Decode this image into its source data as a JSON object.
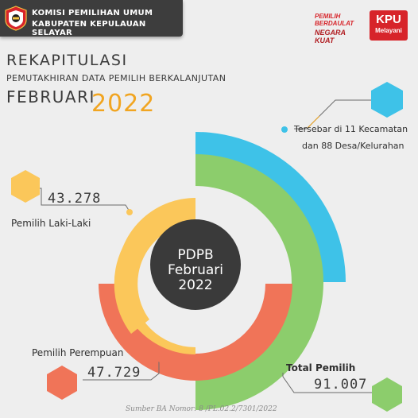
{
  "header": {
    "org_line1": "KOMISI PEMILIHAN UMUM",
    "org_line2": "KABUPATEN KEPULAUAN SELAYAR"
  },
  "badges": {
    "pilihan_line1": "PEMILIH",
    "pilihan_line2": "BERDAULAT",
    "pilihan_line3": "NEGARA",
    "pilihan_line4": "KUAT",
    "kpu_line1": "KPU",
    "kpu_line2": "Melayani"
  },
  "title": {
    "line1": "REKAPITULASI",
    "line2": "PEMUTAKHIRAN DATA PEMILIH BERKALANJUTAN",
    "month": "FEBRUARI",
    "year": "2022"
  },
  "center": {
    "line1": "PDPB",
    "line2": "Februari",
    "line3": "2022"
  },
  "stats": {
    "tersebar_line1": "Tersebar di 11 Kecamatan",
    "tersebar_line2": "dan 88 Desa/Kelurahan",
    "laki_value": "43.278",
    "laki_label": "Pemilih Laki-Laki",
    "perempuan_label": "Pemilih Perempuan",
    "perempuan_value": "47.729",
    "total_label": "Total Pemilih",
    "total_value": "91.007"
  },
  "source": "Sumber BA Nomor: 8 /PL.02.2/7301/2022",
  "colors": {
    "blue": "#3ec2e8",
    "green": "#8ccd6c",
    "yellow": "#fbc75a",
    "coral": "#f07458",
    "dark": "#3a3a3a",
    "accent_year": "#f1a521",
    "kpu_red": "#d7242a"
  },
  "icons": {
    "logo": "kpu-logo-icon",
    "hexagons": "hexagon-icon"
  }
}
